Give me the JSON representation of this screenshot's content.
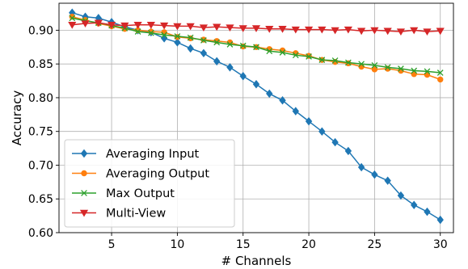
{
  "chart_data": {
    "type": "line",
    "title": "",
    "xlabel": "# Channels",
    "ylabel": "Accuracy",
    "xlim": [
      1,
      31
    ],
    "ylim": [
      0.6,
      0.94
    ],
    "xticks": [
      5,
      10,
      15,
      20,
      25,
      30
    ],
    "yticks": [
      0.6,
      0.65,
      0.7,
      0.75,
      0.8,
      0.85,
      0.9
    ],
    "ytick_labels": [
      "0.60",
      "0.65",
      "0.70",
      "0.75",
      "0.80",
      "0.85",
      "0.90"
    ],
    "grid": true,
    "legend_position": "bottom-left",
    "x": [
      2,
      3,
      4,
      5,
      6,
      7,
      8,
      9,
      10,
      11,
      12,
      13,
      14,
      15,
      16,
      17,
      18,
      19,
      20,
      21,
      22,
      23,
      24,
      25,
      26,
      27,
      28,
      29,
      30
    ],
    "series": [
      {
        "name": "Averaging Input",
        "color": "#1f77b4",
        "marker": "diamond",
        "values": [
          0.926,
          0.92,
          0.918,
          0.912,
          0.905,
          0.9,
          0.897,
          0.888,
          0.882,
          0.873,
          0.866,
          0.854,
          0.845,
          0.832,
          0.82,
          0.806,
          0.796,
          0.78,
          0.765,
          0.75,
          0.734,
          0.721,
          0.697,
          0.686,
          0.677,
          0.655,
          0.641,
          0.631,
          0.619
        ]
      },
      {
        "name": "Averaging Output",
        "color": "#ff7f0e",
        "marker": "circle",
        "values": [
          0.92,
          0.915,
          0.91,
          0.906,
          0.902,
          0.9,
          0.898,
          0.897,
          0.89,
          0.888,
          0.886,
          0.884,
          0.882,
          0.876,
          0.875,
          0.872,
          0.87,
          0.866,
          0.862,
          0.856,
          0.853,
          0.851,
          0.846,
          0.842,
          0.843,
          0.84,
          0.835,
          0.834,
          0.827
        ]
      },
      {
        "name": "Max Output",
        "color": "#2ca02c",
        "marker": "x",
        "values": [
          0.918,
          0.914,
          0.911,
          0.907,
          0.903,
          0.898,
          0.896,
          0.893,
          0.891,
          0.889,
          0.885,
          0.882,
          0.879,
          0.877,
          0.875,
          0.869,
          0.867,
          0.863,
          0.861,
          0.856,
          0.855,
          0.852,
          0.85,
          0.848,
          0.845,
          0.843,
          0.84,
          0.839,
          0.837
        ]
      },
      {
        "name": "Multi-View",
        "color": "#d62728",
        "marker": "triangle-down",
        "values": [
          0.908,
          0.91,
          0.911,
          0.908,
          0.907,
          0.908,
          0.908,
          0.907,
          0.906,
          0.906,
          0.904,
          0.905,
          0.904,
          0.903,
          0.903,
          0.902,
          0.902,
          0.901,
          0.901,
          0.901,
          0.9,
          0.901,
          0.899,
          0.9,
          0.899,
          0.898,
          0.9,
          0.898,
          0.899
        ]
      }
    ]
  }
}
